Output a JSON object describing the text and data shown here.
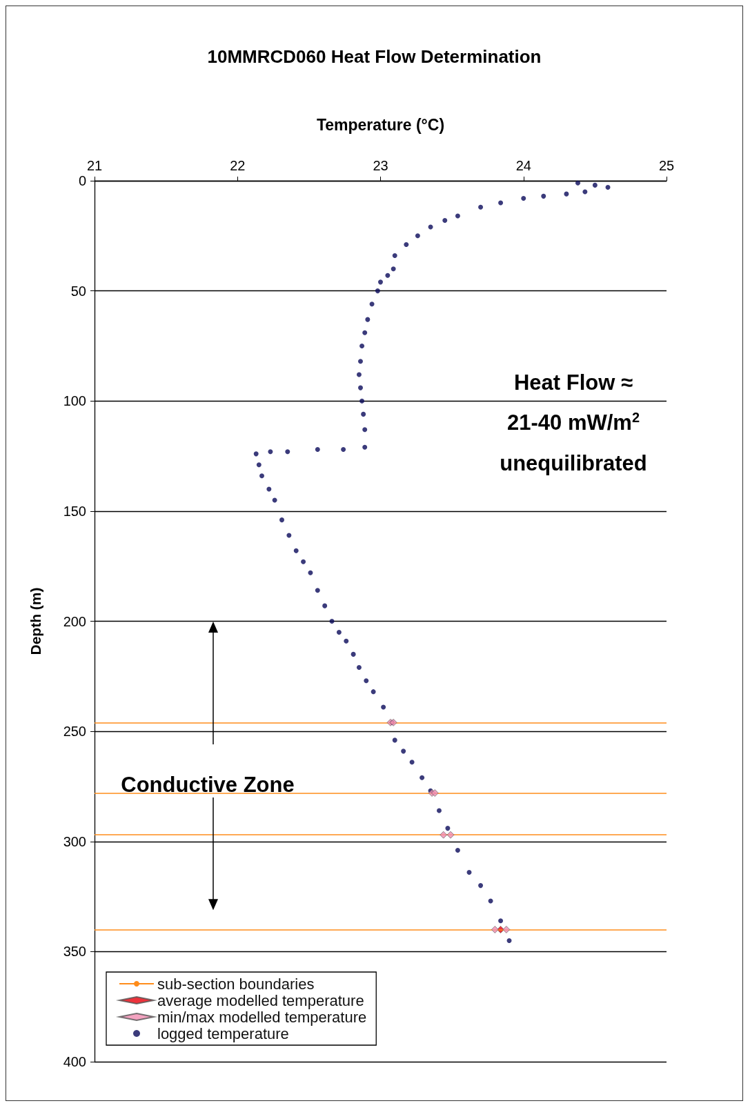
{
  "chart_data": {
    "type": "scatter",
    "title": "10MMRCD060 Heat Flow Determination",
    "xlabel": "Temperature (°C)",
    "ylabel": "Depth (m)",
    "xlim": [
      21,
      25
    ],
    "xticks": [
      21,
      22,
      23,
      24,
      25
    ],
    "ylim": [
      400,
      0
    ],
    "yticks": [
      0,
      50,
      100,
      150,
      200,
      250,
      300,
      350,
      400
    ],
    "grid": "y",
    "legend": "bottom left",
    "annotations": [
      "Heat Flow ≈",
      "21-40 mW/m$^{2}$",
      "unequilibrated",
      "Conductive Zone"
    ],
    "ref_lines": [
      {
        "axis": "y",
        "value": 246,
        "label": "sub-section boundaries",
        "color": "#ff8c1a"
      },
      {
        "axis": "y",
        "value": 278,
        "color": "#ff8c1a"
      },
      {
        "axis": "y",
        "value": 297,
        "color": "#ff8c1a"
      },
      {
        "axis": "y",
        "value": 340,
        "color": "#ff8c1a"
      }
    ],
    "series": [
      {
        "name": "logged temperature",
        "color": "#0a0a5a",
        "marker": "circle",
        "x": [
          24.38,
          24.5,
          24.59,
          24.43,
          24.3,
          24.14,
          24.0,
          23.84,
          23.7,
          23.54,
          23.45,
          23.35,
          23.26,
          23.18,
          23.1,
          23.09,
          23.05,
          23.0,
          22.98,
          22.94,
          22.91,
          22.89,
          22.87,
          22.86,
          22.85,
          22.86,
          22.87,
          22.88,
          22.89,
          22.89,
          22.74,
          22.56,
          22.35,
          22.23,
          22.13,
          22.15,
          22.17,
          22.22,
          22.26,
          22.31,
          22.36,
          22.41,
          22.46,
          22.51,
          22.56,
          22.61,
          22.66,
          22.71,
          22.76,
          22.81,
          22.85,
          22.9,
          22.95,
          23.02,
          23.08,
          23.1,
          23.16,
          23.22,
          23.29,
          23.35,
          23.41,
          23.47,
          23.54,
          23.62,
          23.7,
          23.77,
          23.84,
          23.9
        ],
        "values": [
          1,
          2,
          3,
          5,
          6,
          7,
          8,
          10,
          12,
          16,
          18,
          21,
          25,
          29,
          34,
          40,
          43,
          46,
          50,
          56,
          63,
          69,
          75,
          82,
          88,
          94,
          100,
          106,
          113,
          121,
          122,
          122,
          123,
          123,
          124,
          129,
          134,
          140,
          145,
          154,
          161,
          168,
          173,
          178,
          186,
          193,
          200,
          205,
          209,
          215,
          221,
          227,
          232,
          239,
          246,
          254,
          259,
          264,
          271,
          277,
          286,
          294,
          304,
          314,
          320,
          327,
          336,
          345
        ]
      },
      {
        "name": "average modelled temperature",
        "color": "#e8000b",
        "marker": "diamond",
        "x": [
          23.84
        ],
        "values": [
          340
        ]
      },
      {
        "name": "min/max modelled temperature",
        "color": "#f08cb0",
        "marker": "diamond",
        "x": [
          23.07,
          23.09,
          23.36,
          23.38,
          23.44,
          23.49,
          23.8,
          23.88
        ],
        "values": [
          246,
          246,
          278,
          278,
          297,
          297,
          340,
          340
        ]
      }
    ]
  }
}
